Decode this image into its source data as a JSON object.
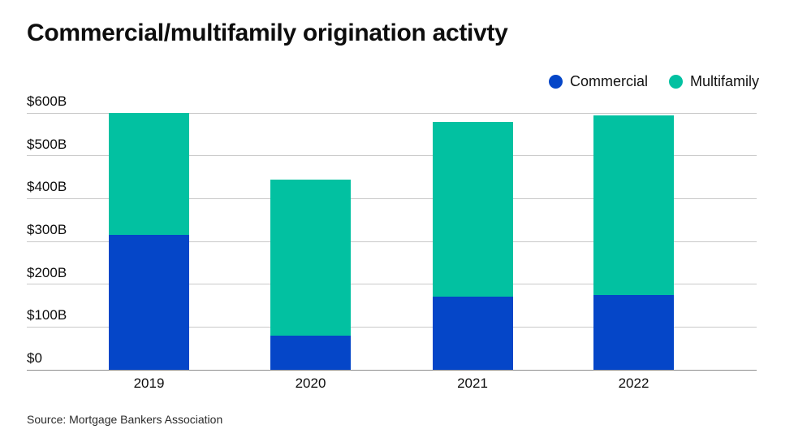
{
  "chart_data": {
    "type": "bar",
    "stacked": true,
    "title": "Commercial/multifamily origination activty",
    "source": "Source: Mortgage Bankers Association",
    "categories": [
      "2019",
      "2020",
      "2021",
      "2022"
    ],
    "series": [
      {
        "name": "Commercial",
        "color": "#0546C8",
        "values": [
          315,
          80,
          170,
          175
        ]
      },
      {
        "name": "Multifamily",
        "color": "#02C1A1",
        "values": [
          285,
          365,
          410,
          420
        ]
      }
    ],
    "totals": [
      600,
      445,
      580,
      595
    ],
    "unit": "billions USD",
    "ylim": [
      0,
      600
    ],
    "ytick_interval": 100,
    "ytick_labels": [
      "$0",
      "$100B",
      "$200B",
      "$300B",
      "$400B",
      "$500B",
      "$600B"
    ],
    "grid": true,
    "legend_position": "top-right",
    "colors": {
      "gridline": "#c9c9c9",
      "axis_line": "#8f8f8f",
      "text": "#0d0d0d"
    }
  }
}
